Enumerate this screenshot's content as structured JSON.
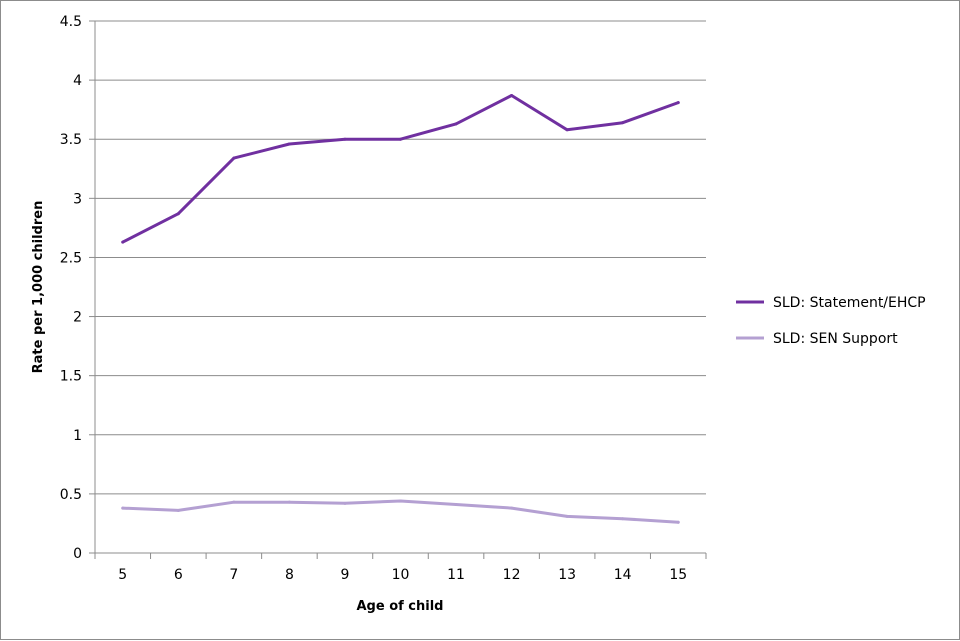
{
  "chart_data": {
    "type": "line",
    "x": [
      5,
      6,
      7,
      8,
      9,
      10,
      11,
      12,
      13,
      14,
      15
    ],
    "xlabel": "Age of child",
    "ylabel": "Rate per 1,000 children",
    "ylim": [
      0,
      4.5
    ],
    "yticks": [
      "0",
      "0.5",
      "1",
      "1.5",
      "2",
      "2.5",
      "3",
      "3.5",
      "4",
      "4.5"
    ],
    "grid": true,
    "legend_position": "right",
    "series": [
      {
        "name": "SLD: Statement/EHCP",
        "color": "#7030a0",
        "values": [
          2.63,
          2.87,
          3.34,
          3.46,
          3.5,
          3.5,
          3.63,
          3.87,
          3.58,
          3.64,
          3.81
        ]
      },
      {
        "name": "SLD: SEN Support",
        "color": "#b4a0d2",
        "values": [
          0.38,
          0.36,
          0.43,
          0.43,
          0.42,
          0.44,
          0.41,
          0.38,
          0.31,
          0.29,
          0.26
        ]
      }
    ]
  }
}
